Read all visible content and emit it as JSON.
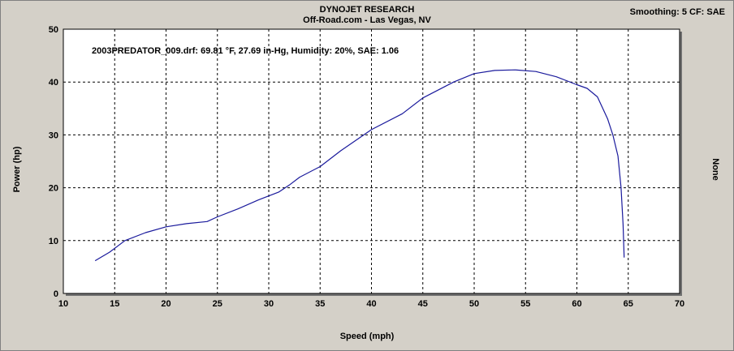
{
  "header": {
    "title": "DYNOJET RESEARCH",
    "subtitle": "Off-Road.com - Las Vegas, NV",
    "settings": "Smoothing: 5  CF: SAE"
  },
  "chart_data": {
    "type": "line",
    "xlabel": "Speed (mph)",
    "ylabel": "Power (hp)",
    "right_label": "None",
    "annotation": "2003PREDATOR_009.drf: 69.81 °F, 27.69 in-Hg, Humidity: 20%, SAE: 1.06",
    "xlim": [
      10,
      70
    ],
    "ylim": [
      0,
      50
    ],
    "x_ticks": [
      10,
      15,
      20,
      25,
      30,
      35,
      40,
      45,
      50,
      55,
      60,
      65,
      70
    ],
    "y_ticks": [
      0,
      10,
      20,
      30,
      40,
      50
    ],
    "grid": true,
    "line_color": "#1a1a9c",
    "series": [
      {
        "x": [
          13.1,
          14.5,
          16,
          18,
          20,
          22,
          24,
          25,
          27,
          29,
          31,
          32,
          33,
          35,
          37,
          40,
          43,
          45,
          48,
          50,
          52,
          54,
          56,
          58,
          60,
          61,
          62,
          63,
          63.5,
          64,
          64.3,
          64.5,
          64.6
        ],
        "y": [
          6.2,
          7.8,
          10,
          11.5,
          12.6,
          13.2,
          13.6,
          14.5,
          16,
          17.7,
          19.2,
          20.5,
          22,
          24,
          27,
          31,
          34,
          37,
          40,
          41.6,
          42.2,
          42.3,
          42,
          41,
          39.5,
          38.8,
          37.2,
          33,
          30,
          26,
          20,
          13,
          6.8
        ]
      }
    ]
  }
}
